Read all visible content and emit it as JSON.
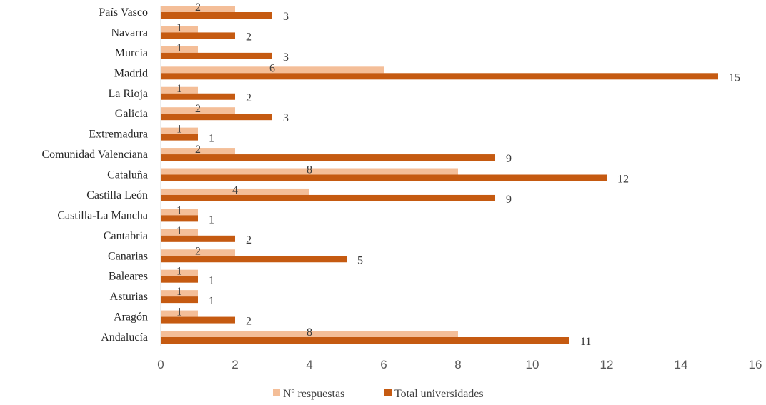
{
  "chart_data": {
    "type": "bar",
    "orientation": "horizontal",
    "categories": [
      "Andalucía",
      "Aragón",
      "Asturias",
      "Baleares",
      "Canarias",
      "Cantabria",
      "Castilla-La Mancha",
      "Castilla León",
      "Cataluña",
      "Comunidad Valenciana",
      "Extremadura",
      "Galicia",
      "La Rioja",
      "Madrid",
      "Murcia",
      "Navarra",
      "País Vasco"
    ],
    "series": [
      {
        "name": "Nº respuestas",
        "color": "#F4BE98",
        "values": [
          8,
          1,
          1,
          1,
          2,
          1,
          1,
          4,
          8,
          2,
          1,
          2,
          1,
          6,
          1,
          1,
          2
        ]
      },
      {
        "name": "Total universidades",
        "color": "#C55A11",
        "values": [
          11,
          2,
          1,
          1,
          5,
          2,
          1,
          9,
          12,
          9,
          1,
          3,
          2,
          15,
          3,
          2,
          3
        ]
      }
    ],
    "xlim": [
      0,
      16
    ],
    "xticks": [
      "0",
      "2",
      "4",
      "6",
      "8",
      "10",
      "12",
      "14",
      "16"
    ],
    "grid": false,
    "legend_position": "bottom"
  }
}
